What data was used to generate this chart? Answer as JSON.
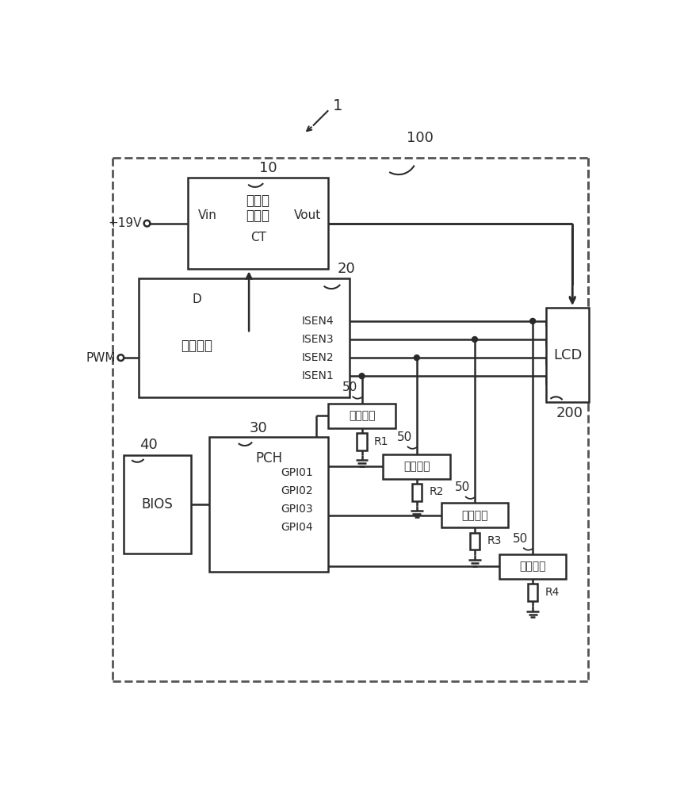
{
  "bg_color": "#ffffff",
  "line_color": "#2a2a2a",
  "dashed_color": "#555555",
  "fig_width": 8.63,
  "fig_height": 10.0,
  "labels": {
    "label1": "1",
    "label100": "100",
    "label10": "10",
    "label20": "20",
    "label30": "30",
    "label40": "40",
    "label200": "200",
    "label50": "50",
    "plus19v": "+19V",
    "pwm": "PWM",
    "vin": "Vin",
    "vout": "Vout",
    "ct": "CT",
    "d": "D",
    "isen4": "ISEN4",
    "isen3": "ISEN3",
    "isen2": "ISEN2",
    "isen1": "ISEN1",
    "gpio1": "GPI01",
    "gpio2": "GPI02",
    "gpio3": "GPI03",
    "gpio4": "GPI04",
    "pch": "PCH",
    "bios": "BIOS",
    "lcd": "LCD",
    "r1": "R1",
    "r2": "R2",
    "r3": "R3",
    "r4": "R4",
    "power_module_line1": "电源调",
    "power_module_line2": "节模块",
    "control_chip": "控制芯片",
    "switch_unit": "开关单元"
  }
}
